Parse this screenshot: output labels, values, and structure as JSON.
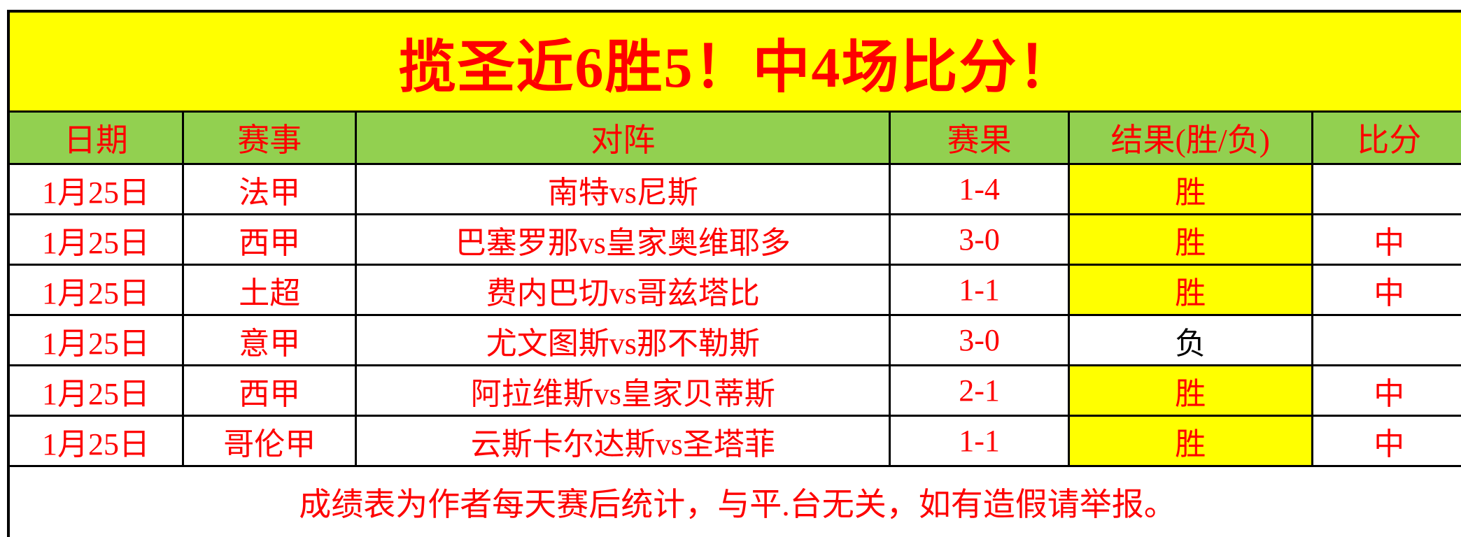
{
  "title": "揽圣近6胜5！中4场比分！",
  "table": {
    "headers": [
      "日期",
      "赛事",
      "对阵",
      "赛果",
      "结果(胜/负)",
      "比分"
    ],
    "rows": [
      {
        "date": "1月25日",
        "league": "法甲",
        "match": "南特vs尼斯",
        "score": "1-4",
        "result": "胜",
        "result_highlight": true,
        "hit": ""
      },
      {
        "date": "1月25日",
        "league": "西甲",
        "match": "巴塞罗那vs皇家奥维耶多",
        "score": "3-0",
        "result": "胜",
        "result_highlight": true,
        "hit": "中"
      },
      {
        "date": "1月25日",
        "league": "土超",
        "match": "费内巴切vs哥兹塔比",
        "score": "1-1",
        "result": "胜",
        "result_highlight": true,
        "hit": "中"
      },
      {
        "date": "1月25日",
        "league": "意甲",
        "match": "尤文图斯vs那不勒斯",
        "score": "3-0",
        "result": "负",
        "result_highlight": false,
        "hit": ""
      },
      {
        "date": "1月25日",
        "league": "西甲",
        "match": "阿拉维斯vs皇家贝蒂斯",
        "score": "2-1",
        "result": "胜",
        "result_highlight": true,
        "hit": "中"
      },
      {
        "date": "1月25日",
        "league": "哥伦甲",
        "match": "云斯卡尔达斯vs圣塔菲",
        "score": "1-1",
        "result": "胜",
        "result_highlight": true,
        "hit": "中"
      }
    ],
    "footer": "成绩表为作者每天赛后统计，与平.台无关，如有造假请举报。"
  },
  "colors": {
    "banner_background": "#ffff00",
    "header_background": "#92d050",
    "accent_text": "#fe0000",
    "win_highlight": "#ffff00",
    "loss_text": "#000000",
    "grid_border": "#000000"
  }
}
